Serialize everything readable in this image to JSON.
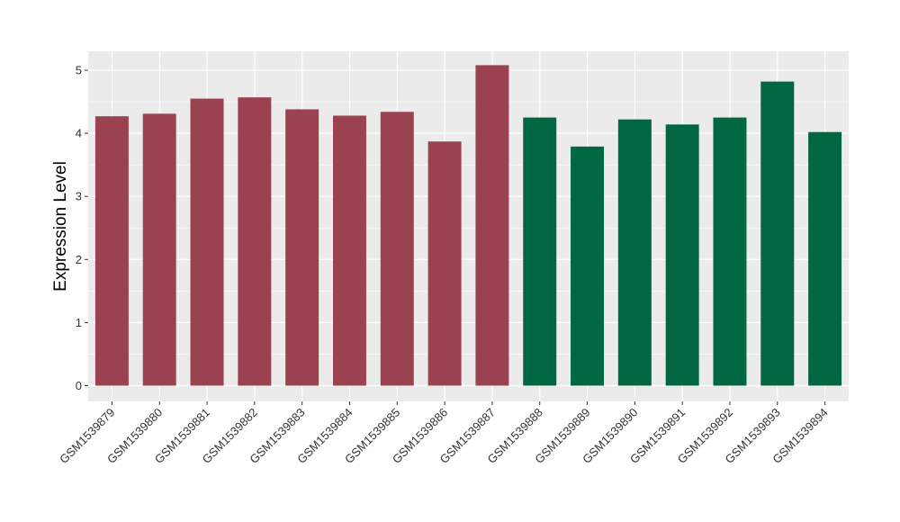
{
  "chart_data": {
    "type": "bar",
    "title": "",
    "xlabel": "",
    "ylabel": "Expression Level",
    "ylim": [
      -0.25,
      5.3
    ],
    "yticks": [
      0,
      1,
      2,
      3,
      4,
      5
    ],
    "grid": true,
    "legend": "none",
    "categories": [
      "GSM1539879",
      "GSM1539880",
      "GSM1539881",
      "GSM1539882",
      "GSM1539883",
      "GSM1539884",
      "GSM1539885",
      "GSM1539886",
      "GSM1539887",
      "GSM1539888",
      "GSM1539889",
      "GSM1539890",
      "GSM1539891",
      "GSM1539892",
      "GSM1539893",
      "GSM1539894"
    ],
    "values": [
      4.27,
      4.31,
      4.55,
      4.57,
      4.38,
      4.28,
      4.34,
      3.87,
      5.08,
      4.25,
      3.79,
      4.22,
      4.14,
      4.25,
      4.82,
      4.02
    ],
    "groups": [
      0,
      0,
      0,
      0,
      0,
      0,
      0,
      0,
      0,
      1,
      1,
      1,
      1,
      1,
      1,
      1
    ],
    "group_colors": [
      "#9A4250",
      "#006743"
    ],
    "panel_background": "#EBEBEB",
    "grid_color": "#FFFFFF"
  }
}
